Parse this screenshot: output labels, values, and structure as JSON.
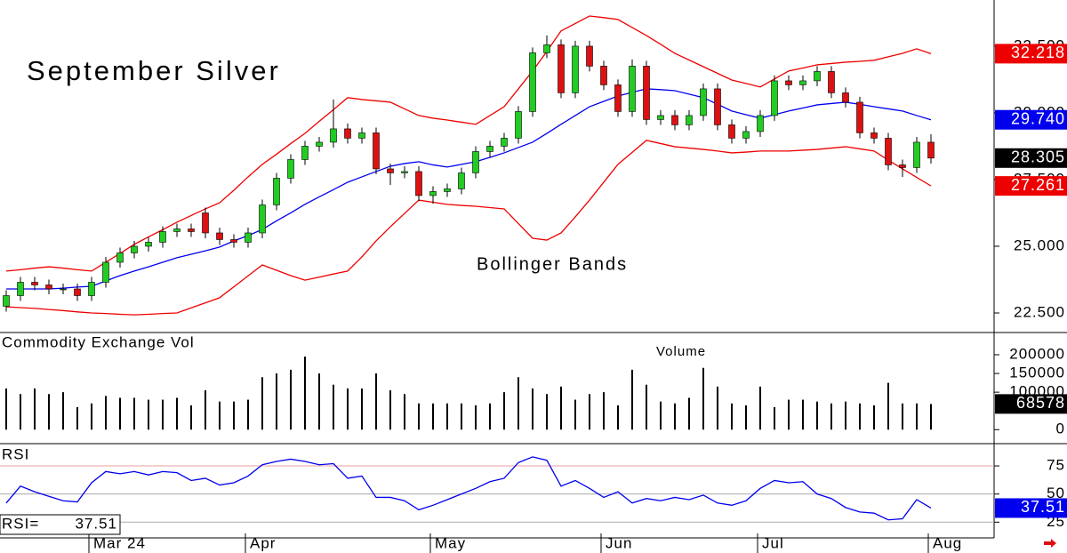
{
  "chart_data": [
    {
      "type": "candlestick",
      "title": "September Silver",
      "annotation": "Bollinger Bands",
      "categories": [
        null,
        null,
        null,
        null,
        null,
        null,
        "Mar 24",
        null,
        null,
        null,
        null,
        null,
        null,
        null,
        null,
        null,
        null,
        "Apr",
        null,
        null,
        null,
        null,
        null,
        null,
        null,
        null,
        null,
        null,
        null,
        null,
        "May",
        null,
        null,
        null,
        null,
        null,
        null,
        null,
        null,
        null,
        null,
        null,
        "Jun",
        null,
        null,
        null,
        null,
        null,
        null,
        null,
        null,
        null,
        null,
        "Jul",
        null,
        null,
        null,
        null,
        null,
        null,
        null,
        null,
        null,
        null,
        null,
        "Aug"
      ],
      "open": [
        22.75,
        23.15,
        23.65,
        23.55,
        23.4,
        23.4,
        23.15,
        23.65,
        24.4,
        24.75,
        25.0,
        25.15,
        25.55,
        25.65,
        26.25,
        25.5,
        25.25,
        25.15,
        25.5,
        26.55,
        27.55,
        28.25,
        28.75,
        28.9,
        29.4,
        29.05,
        29.25,
        27.9,
        27.75,
        27.8,
        26.9,
        27.05,
        27.15,
        27.75,
        28.55,
        28.75,
        29.05,
        30.05,
        32.25,
        32.55,
        30.75,
        32.5,
        31.75,
        31.05,
        30.05,
        31.75,
        29.75,
        29.9,
        29.55,
        29.9,
        30.9,
        29.55,
        29.05,
        29.3,
        29.9,
        31.2,
        31.05,
        31.2,
        31.55,
        30.75,
        30.4,
        29.25,
        29.05,
        28.05,
        27.95,
        28.9
      ],
      "high": [
        23.35,
        23.85,
        23.85,
        23.75,
        23.6,
        23.6,
        23.85,
        24.6,
        24.95,
        25.2,
        25.35,
        25.75,
        25.85,
        25.85,
        26.45,
        25.7,
        25.45,
        25.7,
        26.75,
        27.75,
        28.45,
        28.95,
        29.1,
        30.5,
        29.6,
        29.45,
        29.45,
        28.1,
        28.0,
        28.0,
        27.25,
        27.35,
        27.95,
        28.75,
        28.95,
        29.25,
        30.25,
        32.45,
        32.9,
        32.75,
        32.7,
        32.7,
        31.95,
        31.25,
        32.0,
        31.95,
        30.1,
        30.1,
        30.1,
        31.1,
        31.1,
        29.75,
        29.5,
        30.1,
        31.4,
        31.4,
        31.4,
        31.75,
        31.75,
        30.95,
        30.6,
        29.45,
        29.25,
        28.25,
        29.1,
        29.2
      ],
      "low": [
        22.55,
        22.95,
        23.35,
        23.2,
        23.2,
        22.95,
        22.95,
        23.45,
        24.2,
        24.55,
        24.8,
        24.95,
        25.35,
        25.35,
        25.3,
        25.05,
        24.95,
        24.95,
        25.3,
        26.35,
        27.35,
        28.05,
        28.55,
        28.7,
        28.85,
        28.85,
        27.7,
        27.3,
        27.55,
        26.7,
        26.6,
        26.85,
        26.95,
        27.55,
        28.35,
        28.55,
        28.85,
        29.85,
        32.05,
        30.55,
        30.55,
        31.55,
        30.85,
        29.85,
        29.85,
        29.55,
        29.55,
        29.35,
        29.35,
        29.7,
        29.35,
        28.85,
        28.85,
        29.1,
        29.7,
        30.85,
        30.85,
        31.0,
        30.55,
        30.2,
        29.05,
        28.85,
        27.85,
        27.6,
        27.75,
        28.1
      ],
      "close": [
        23.15,
        23.65,
        23.55,
        23.4,
        23.4,
        23.15,
        23.65,
        24.4,
        24.75,
        25.0,
        25.15,
        25.55,
        25.65,
        25.55,
        25.5,
        25.25,
        25.15,
        25.5,
        26.55,
        27.55,
        28.25,
        28.75,
        28.9,
        29.4,
        29.05,
        29.25,
        27.9,
        27.75,
        27.8,
        26.9,
        27.05,
        27.15,
        27.75,
        28.55,
        28.75,
        29.05,
        30.05,
        32.25,
        32.55,
        30.75,
        32.5,
        31.75,
        31.05,
        30.05,
        31.75,
        29.75,
        29.9,
        29.55,
        29.9,
        30.9,
        29.55,
        29.05,
        29.3,
        29.9,
        31.2,
        31.05,
        31.2,
        31.55,
        30.75,
        30.4,
        29.25,
        29.05,
        28.05,
        27.95,
        28.9,
        28.305
      ],
      "up_color": "#22cc22",
      "down_color": "#dd1111",
      "close_color": "#000000",
      "bands": [
        {
          "color": "#ee0000",
          "values": [
            24.07,
            24.12,
            24.18,
            24.23,
            24.18,
            24.12,
            24.07,
            24.4,
            24.73,
            25.07,
            25.35,
            25.62,
            25.9,
            26.15,
            26.4,
            26.63,
            27.1,
            27.6,
            28.07,
            28.45,
            28.85,
            29.23,
            29.68,
            30.12,
            30.57,
            30.5,
            30.45,
            30.4,
            30.15,
            29.9,
            29.8,
            29.73,
            29.65,
            29.57,
            29.9,
            30.23,
            30.9,
            31.57,
            32.3,
            33.07,
            33.35,
            33.63,
            33.57,
            33.5,
            33.2,
            32.9,
            32.57,
            32.23,
            31.98,
            31.73,
            31.48,
            31.23,
            31.1,
            30.97,
            31.27,
            31.57,
            31.68,
            31.8,
            31.85,
            31.9,
            31.93,
            31.97,
            32.1,
            32.23,
            32.4,
            32.218
          ]
        },
        {
          "color": "#0000ee",
          "values": [
            23.4,
            23.4,
            23.4,
            23.4,
            23.43,
            23.47,
            23.5,
            23.7,
            23.9,
            24.07,
            24.23,
            24.4,
            24.57,
            24.7,
            24.83,
            24.97,
            25.2,
            25.4,
            25.63,
            25.95,
            26.25,
            26.57,
            26.85,
            27.12,
            27.4,
            27.6,
            27.8,
            28.0,
            28.1,
            28.17,
            28.05,
            27.97,
            28.07,
            28.17,
            28.33,
            28.5,
            28.7,
            28.9,
            29.23,
            29.57,
            29.9,
            30.23,
            30.43,
            30.63,
            30.77,
            30.9,
            30.87,
            30.83,
            30.7,
            30.57,
            30.32,
            30.07,
            29.93,
            29.8,
            29.93,
            30.07,
            30.18,
            30.3,
            30.35,
            30.4,
            30.32,
            30.23,
            30.15,
            30.07,
            29.9,
            29.74
          ],
          "value_labels": [
            null,
            null,
            null,
            null,
            null,
            null,
            null,
            null,
            null,
            null,
            null,
            null,
            null,
            null,
            null,
            null,
            null,
            null,
            null,
            null,
            null,
            null,
            null,
            null,
            null,
            null,
            null,
            null,
            null,
            null,
            null,
            null,
            null,
            null,
            null,
            null,
            null,
            null,
            null,
            null,
            null,
            null,
            null,
            null,
            null,
            null,
            null,
            null,
            null,
            null,
            null,
            null,
            null,
            null,
            null,
            null,
            null,
            null,
            null,
            null,
            null,
            null,
            null,
            null,
            null,
            "29.740"
          ]
        },
        {
          "color": "#ee0000",
          "values": [
            22.73,
            22.7,
            22.67,
            22.63,
            22.59,
            22.54,
            22.5,
            22.48,
            22.45,
            22.43,
            22.45,
            22.48,
            22.5,
            22.69,
            22.88,
            23.07,
            23.48,
            23.89,
            24.3,
            24.1,
            23.9,
            23.73,
            23.84,
            23.96,
            24.07,
            24.6,
            25.2,
            25.73,
            26.23,
            26.73,
            26.65,
            26.57,
            26.53,
            26.5,
            26.45,
            26.4,
            25.85,
            25.3,
            25.23,
            25.5,
            26.1,
            26.73,
            27.4,
            28.07,
            28.52,
            28.97,
            28.85,
            28.73,
            28.68,
            28.63,
            28.57,
            28.5,
            28.53,
            28.57,
            28.57,
            28.57,
            28.6,
            28.63,
            28.68,
            28.73,
            28.65,
            28.57,
            28.23,
            27.9,
            27.58,
            27.261
          ]
        }
      ],
      "ylim": [
        21.8,
        34.23
      ],
      "yticks": [
        {
          "value": 22.5,
          "label": "22.500"
        },
        {
          "value": 25,
          "label": "25.000"
        },
        {
          "value": 27.5,
          "label": "27.500"
        },
        {
          "value": 30,
          "label": "30.000"
        },
        {
          "value": 32.5,
          "label": "32.500"
        }
      ]
    },
    {
      "type": "bar",
      "title": "Commodity Exchange Vol",
      "annotation": "Volume",
      "color": "#000000",
      "values": [
        110000,
        95000,
        110000,
        95000,
        100000,
        60000,
        70000,
        90000,
        85000,
        85000,
        80000,
        80000,
        85000,
        65000,
        105000,
        75000,
        75000,
        80000,
        140000,
        150000,
        160000,
        195000,
        150000,
        120000,
        110000,
        110000,
        150000,
        105000,
        95000,
        70000,
        70000,
        70000,
        70000,
        65000,
        70000,
        100000,
        140000,
        110000,
        95000,
        115000,
        80000,
        95000,
        100000,
        65000,
        160000,
        120000,
        75000,
        70000,
        85000,
        165000,
        115000,
        70000,
        65000,
        115000,
        60000,
        80000,
        80000,
        75000,
        70000,
        75000,
        70000,
        65000,
        125000,
        70000,
        70000,
        68578
      ],
      "ylim": [
        -35000,
        257000
      ],
      "yticks": [
        0,
        100000,
        150000,
        200000
      ]
    },
    {
      "type": "line",
      "title": "RSI",
      "label": "RSI=",
      "color": "#0000ee",
      "values": [
        42,
        57,
        52,
        48,
        44,
        43,
        60,
        70,
        68,
        70,
        67,
        70,
        69,
        62,
        64,
        58,
        60,
        66,
        76,
        79,
        81,
        79,
        76,
        77,
        64,
        66,
        47,
        47,
        44,
        36,
        40,
        45,
        50,
        55,
        61,
        64,
        78,
        83,
        80,
        57,
        62,
        55,
        47,
        52,
        42,
        46,
        44,
        47,
        45,
        49,
        42,
        40,
        44,
        55,
        62,
        60,
        61,
        50,
        46,
        38,
        34,
        33,
        27,
        28,
        45,
        37.51
      ],
      "ylim": [
        11,
        94
      ],
      "yticks": [
        25,
        50,
        75
      ],
      "grid": true
    }
  ]
}
